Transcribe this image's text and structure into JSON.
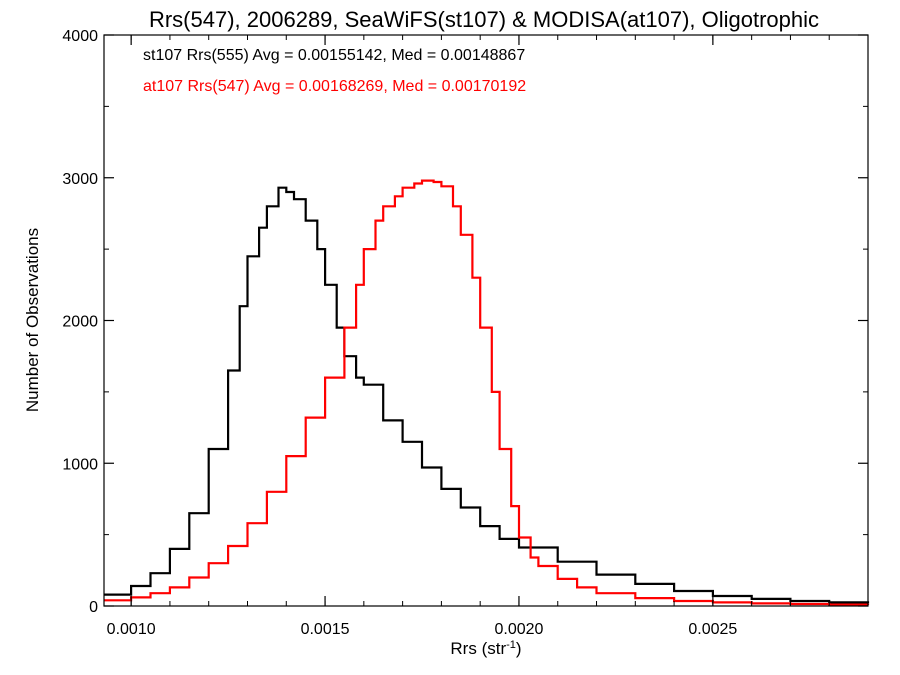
{
  "chart_data": {
    "type": "line",
    "title": "Rrs(547), 2006289, SeaWiFS(st107) & MODISA(at107), Oligotrophic",
    "xlabel": "Rrs (str",
    "xlabel_sup": "-1",
    "xlabel_close": ")",
    "ylabel": "Number of Observations",
    "xlim": [
      0.00093,
      0.0029
    ],
    "ylim": [
      0,
      4000
    ],
    "x_ticks": [
      0.001,
      0.0015,
      0.002,
      0.0025
    ],
    "x_tick_labels": [
      "0.0010",
      "0.0015",
      "0.0020",
      "0.0025"
    ],
    "y_ticks": [
      0,
      1000,
      2000,
      3000,
      4000
    ],
    "y_tick_labels": [
      "0",
      "1000",
      "2000",
      "3000",
      "4000"
    ],
    "grid": false,
    "annotations": [
      {
        "text": "st107 Rrs(555) Avg = 0.00155142, Med = 0.00148867",
        "color": "#000000"
      },
      {
        "text": "at107 Rrs(547) Avg = 0.00168269, Med = 0.00170192",
        "color": "#ff0000"
      }
    ],
    "series": [
      {
        "color": "#000000",
        "x": [
          0.00093,
          0.001,
          0.00105,
          0.0011,
          0.00115,
          0.0012,
          0.00125,
          0.00128,
          0.0013,
          0.00133,
          0.00135,
          0.00138,
          0.0014,
          0.00142,
          0.00145,
          0.00148,
          0.0015,
          0.00153,
          0.00155,
          0.00158,
          0.0016,
          0.00165,
          0.0017,
          0.00175,
          0.0018,
          0.00185,
          0.0019,
          0.00195,
          0.002,
          0.0021,
          0.0022,
          0.0023,
          0.0024,
          0.0025,
          0.0026,
          0.0027,
          0.0028,
          0.0029
        ],
        "values": [
          80,
          140,
          230,
          400,
          650,
          1100,
          1650,
          2100,
          2450,
          2650,
          2800,
          2930,
          2900,
          2850,
          2700,
          2500,
          2250,
          1950,
          1750,
          1600,
          1550,
          1300,
          1150,
          970,
          820,
          690,
          560,
          470,
          410,
          310,
          220,
          155,
          105,
          70,
          50,
          35,
          25,
          20
        ]
      },
      {
        "color": "#ff0000",
        "x": [
          0.00093,
          0.001,
          0.00105,
          0.0011,
          0.00115,
          0.0012,
          0.00125,
          0.0013,
          0.00135,
          0.0014,
          0.00145,
          0.0015,
          0.00155,
          0.00158,
          0.0016,
          0.00163,
          0.00165,
          0.00168,
          0.0017,
          0.00173,
          0.00175,
          0.00178,
          0.0018,
          0.00183,
          0.00185,
          0.00188,
          0.0019,
          0.00193,
          0.00195,
          0.00198,
          0.002,
          0.00203,
          0.00205,
          0.0021,
          0.00215,
          0.0022,
          0.0023,
          0.0024,
          0.0025,
          0.0026,
          0.0027,
          0.0028,
          0.0029
        ],
        "values": [
          40,
          60,
          90,
          130,
          200,
          300,
          420,
          580,
          800,
          1050,
          1320,
          1600,
          1950,
          2250,
          2500,
          2700,
          2800,
          2870,
          2930,
          2960,
          2980,
          2970,
          2940,
          2800,
          2600,
          2300,
          1950,
          1500,
          1100,
          700,
          480,
          340,
          280,
          190,
          130,
          90,
          55,
          35,
          25,
          18,
          14,
          10,
          8
        ]
      }
    ]
  }
}
